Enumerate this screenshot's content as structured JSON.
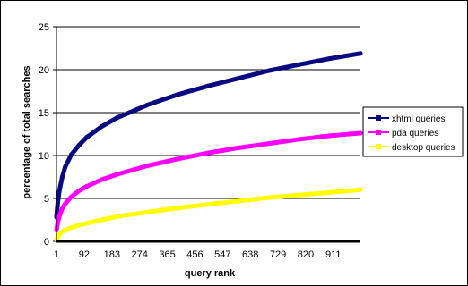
{
  "chart_data": {
    "type": "line",
    "title": "",
    "xlabel": "query rank",
    "ylabel": "percentage of total searches",
    "x_ticks": [
      "1",
      "92",
      "183",
      "274",
      "365",
      "456",
      "547",
      "638",
      "729",
      "820",
      "911"
    ],
    "y_ticks": [
      "0",
      "5",
      "10",
      "15",
      "20",
      "25"
    ],
    "xlim": [
      1,
      1000
    ],
    "ylim": [
      0,
      25
    ],
    "grid": "horizontal",
    "legend_position": "right",
    "series": [
      {
        "name": "xhtml queries",
        "color": "#0a0a80",
        "x": [
          1,
          5,
          10,
          20,
          30,
          50,
          75,
          100,
          150,
          200,
          300,
          400,
          500,
          600,
          700,
          800,
          900,
          1000
        ],
        "y": [
          2.8,
          4.5,
          5.8,
          7.5,
          8.7,
          10.1,
          11.2,
          12.1,
          13.4,
          14.4,
          15.9,
          17.1,
          18.1,
          19.0,
          19.9,
          20.6,
          21.3,
          21.9
        ]
      },
      {
        "name": "pda queries",
        "color": "#ff00ff",
        "x": [
          1,
          5,
          10,
          20,
          30,
          50,
          75,
          100,
          150,
          200,
          300,
          400,
          500,
          600,
          700,
          800,
          900,
          1000
        ],
        "y": [
          1.3,
          2.2,
          2.9,
          3.8,
          4.4,
          5.2,
          5.9,
          6.4,
          7.2,
          7.8,
          8.8,
          9.6,
          10.3,
          10.9,
          11.4,
          11.9,
          12.3,
          12.6
        ]
      },
      {
        "name": "desktop queries",
        "color": "#ffff00",
        "x": [
          1,
          5,
          10,
          20,
          30,
          50,
          75,
          100,
          150,
          200,
          300,
          400,
          500,
          600,
          700,
          800,
          900,
          1000
        ],
        "y": [
          0.2,
          0.5,
          0.8,
          1.1,
          1.3,
          1.6,
          1.9,
          2.1,
          2.5,
          2.9,
          3.4,
          3.9,
          4.3,
          4.7,
          5.1,
          5.4,
          5.7,
          6.0
        ]
      }
    ]
  }
}
